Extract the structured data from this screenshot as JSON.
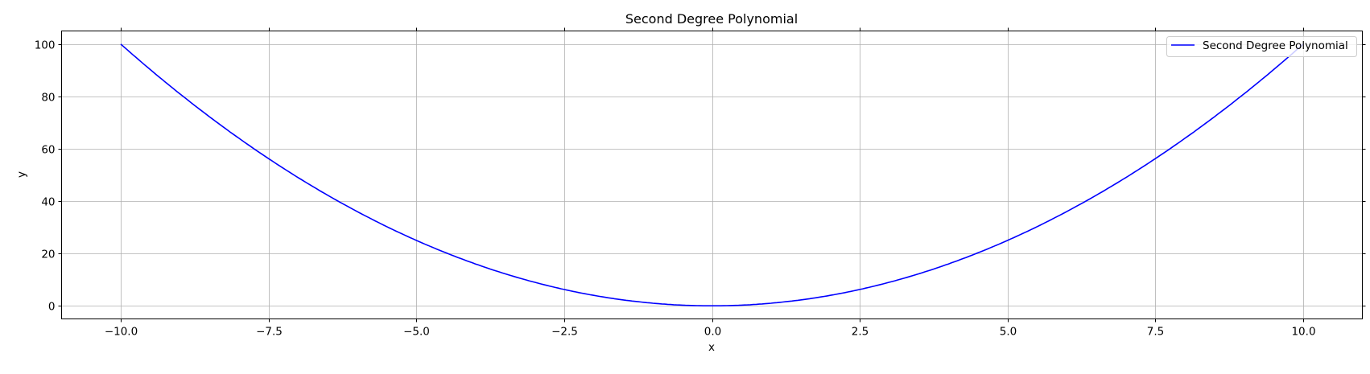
{
  "chart_data": {
    "type": "line",
    "title": "Second Degree Polynomial",
    "xlabel": "x",
    "ylabel": "y",
    "xlim": [
      -11,
      11
    ],
    "ylim": [
      -5,
      105
    ],
    "grid": true,
    "x_ticks": [
      -10.0,
      -7.5,
      -5.0,
      -2.5,
      0.0,
      2.5,
      5.0,
      7.5,
      10.0
    ],
    "x_tick_labels": [
      "−10.0",
      "−7.5",
      "−5.0",
      "−2.5",
      "0.0",
      "2.5",
      "5.0",
      "7.5",
      "10.0"
    ],
    "y_ticks": [
      0,
      20,
      40,
      60,
      80,
      100
    ],
    "y_tick_labels": [
      "0",
      "20",
      "40",
      "60",
      "80",
      "100"
    ],
    "legend": {
      "placement": "top-right",
      "entries": [
        "Second Degree Polynomial"
      ]
    },
    "series": [
      {
        "name": "Second Degree Polynomial",
        "color": "#0000ff",
        "function": "y = x^2",
        "x_range": [
          -10,
          10
        ],
        "x": [
          -10,
          -7.5,
          -5,
          -2.5,
          0,
          2.5,
          5,
          7.5,
          10
        ],
        "y": [
          100,
          56.25,
          25,
          6.25,
          0,
          6.25,
          25,
          56.25,
          100
        ]
      }
    ]
  }
}
